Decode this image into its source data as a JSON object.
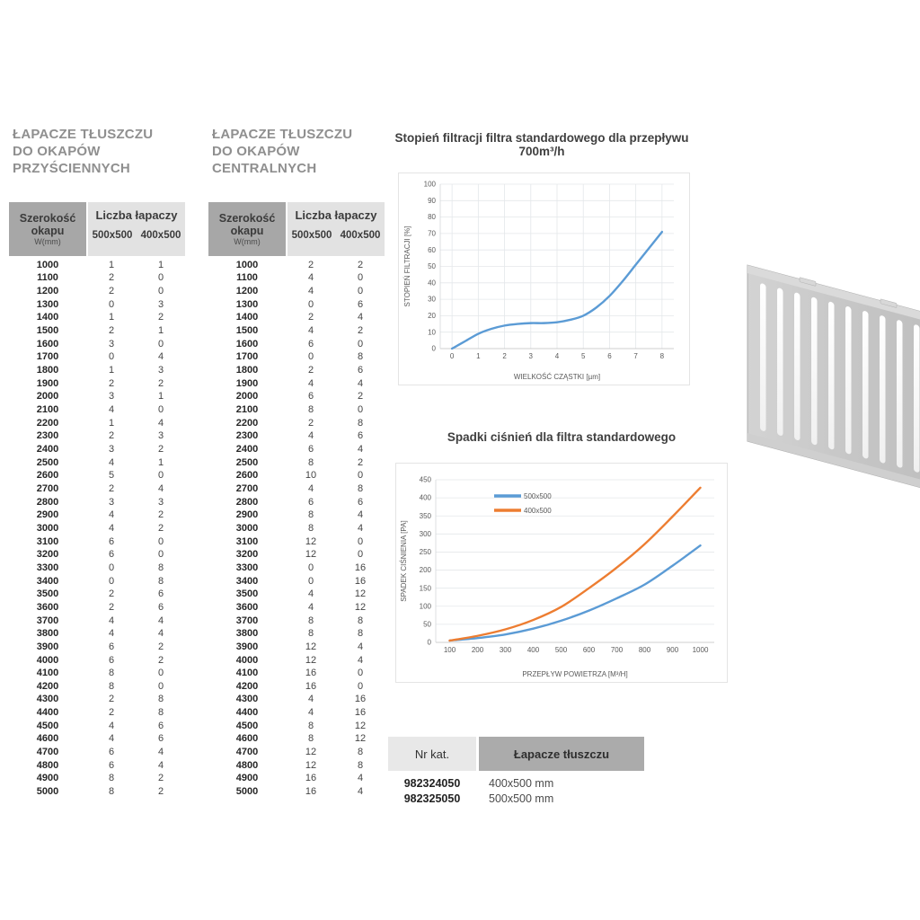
{
  "colors": {
    "accent_blue": "#5b9bd5",
    "accent_orange": "#ed7d31",
    "table_header_dark_bg": "#a7a7a7",
    "table_header_light_bg": "#e2e2e2",
    "section_title_grey": "#8f8f8f"
  },
  "wall_table": {
    "title": [
      "ŁAPACZE TŁUSZCZU",
      "DO OKAPÓW",
      "PRZYŚCIENNYCH"
    ],
    "header": {
      "col1_line1": "Szerokość",
      "col1_line2": "okapu",
      "col1_line3": "W(mm)",
      "group": "Liczba łapaczy",
      "col2": "500x500",
      "col3": "400x500"
    },
    "rows": [
      [
        1000,
        1,
        1
      ],
      [
        1100,
        2,
        0
      ],
      [
        1200,
        2,
        0
      ],
      [
        1300,
        0,
        3
      ],
      [
        1400,
        1,
        2
      ],
      [
        1500,
        2,
        1
      ],
      [
        1600,
        3,
        0
      ],
      [
        1700,
        0,
        4
      ],
      [
        1800,
        1,
        3
      ],
      [
        1900,
        2,
        2
      ],
      [
        2000,
        3,
        1
      ],
      [
        2100,
        4,
        0
      ],
      [
        2200,
        1,
        4
      ],
      [
        2300,
        2,
        3
      ],
      [
        2400,
        3,
        2
      ],
      [
        2500,
        4,
        1
      ],
      [
        2600,
        5,
        0
      ],
      [
        2700,
        2,
        4
      ],
      [
        2800,
        3,
        3
      ],
      [
        2900,
        4,
        2
      ],
      [
        3000,
        4,
        2
      ],
      [
        3100,
        6,
        0
      ],
      [
        3200,
        6,
        0
      ],
      [
        3300,
        0,
        8
      ],
      [
        3400,
        0,
        8
      ],
      [
        3500,
        2,
        6
      ],
      [
        3600,
        2,
        6
      ],
      [
        3700,
        4,
        4
      ],
      [
        3800,
        4,
        4
      ],
      [
        3900,
        6,
        2
      ],
      [
        4000,
        6,
        2
      ],
      [
        4100,
        8,
        0
      ],
      [
        4200,
        8,
        0
      ],
      [
        4300,
        2,
        8
      ],
      [
        4400,
        2,
        8
      ],
      [
        4500,
        4,
        6
      ],
      [
        4600,
        4,
        6
      ],
      [
        4700,
        6,
        4
      ],
      [
        4800,
        6,
        4
      ],
      [
        4900,
        8,
        2
      ],
      [
        5000,
        8,
        2
      ]
    ]
  },
  "central_table": {
    "title": [
      "ŁAPACZE TŁUSZCZU",
      "DO OKAPÓW",
      "CENTRALNYCH"
    ],
    "header": {
      "col1_line1": "Szerokość",
      "col1_line2": "okapu",
      "col1_line3": "W(mm)",
      "group": "Liczba łapaczy",
      "col2": "500x500",
      "col3": "400x500"
    },
    "rows": [
      [
        1000,
        2,
        2
      ],
      [
        1100,
        4,
        0
      ],
      [
        1200,
        4,
        0
      ],
      [
        1300,
        0,
        6
      ],
      [
        1400,
        2,
        4
      ],
      [
        1500,
        4,
        2
      ],
      [
        1600,
        6,
        0
      ],
      [
        1700,
        0,
        8
      ],
      [
        1800,
        2,
        6
      ],
      [
        1900,
        4,
        4
      ],
      [
        2000,
        6,
        2
      ],
      [
        2100,
        8,
        0
      ],
      [
        2200,
        2,
        8
      ],
      [
        2300,
        4,
        6
      ],
      [
        2400,
        6,
        4
      ],
      [
        2500,
        8,
        2
      ],
      [
        2600,
        10,
        0
      ],
      [
        2700,
        4,
        8
      ],
      [
        2800,
        6,
        6
      ],
      [
        2900,
        8,
        4
      ],
      [
        3000,
        8,
        4
      ],
      [
        3100,
        12,
        0
      ],
      [
        3200,
        12,
        0
      ],
      [
        3300,
        0,
        16
      ],
      [
        3400,
        0,
        16
      ],
      [
        3500,
        4,
        12
      ],
      [
        3600,
        4,
        12
      ],
      [
        3700,
        8,
        8
      ],
      [
        3800,
        8,
        8
      ],
      [
        3900,
        12,
        4
      ],
      [
        4000,
        12,
        4
      ],
      [
        4100,
        16,
        0
      ],
      [
        4200,
        16,
        0
      ],
      [
        4300,
        4,
        16
      ],
      [
        4400,
        4,
        16
      ],
      [
        4500,
        8,
        12
      ],
      [
        4600,
        8,
        12
      ],
      [
        4700,
        12,
        8
      ],
      [
        4800,
        12,
        8
      ],
      [
        4900,
        16,
        4
      ],
      [
        5000,
        16,
        4
      ]
    ]
  },
  "catalog_table": {
    "header": {
      "col1": "Nr kat.",
      "col2": "Łapacze tłuszczu"
    },
    "rows": [
      [
        "982324050",
        "400x500 mm"
      ],
      [
        "982325050",
        "500x500 mm"
      ]
    ]
  },
  "chart_data": [
    {
      "type": "line",
      "title": "Stopień filtracji filtra standardowego dla przepływu 700m³/h",
      "xlabel": "WIELKOŚĆ CZĄSTKI [µm]",
      "ylabel": "STOPIEŃ FILTRACJI [%]",
      "xlim": [
        -0.45,
        8.45
      ],
      "ylim": [
        0,
        100
      ],
      "xticks": [
        0,
        1,
        2,
        3,
        4,
        5,
        6,
        7,
        8
      ],
      "yticks": [
        0,
        10,
        20,
        30,
        40,
        50,
        60,
        70,
        80,
        90,
        100
      ],
      "grid": "both",
      "legend": null,
      "series": [
        {
          "color": "#5b9bd5",
          "x": [
            0,
            0.5,
            1,
            1.5,
            2,
            2.5,
            3,
            3.5,
            4,
            4.5,
            5,
            5.5,
            6,
            6.5,
            7,
            7.5,
            8
          ],
          "y": [
            0,
            4.5,
            9,
            12,
            14,
            15,
            15.5,
            15.5,
            16,
            17.5,
            20,
            25,
            32,
            41,
            51,
            61,
            71
          ]
        }
      ]
    },
    {
      "type": "line",
      "title": "Spadki ciśnień dla filtra standardowego",
      "xlabel": "PRZEPŁYW POWIETRZA [M³/H]",
      "ylabel": "SPADEK CIŚNIENIA [PA]",
      "xlim": [
        50,
        1050
      ],
      "ylim": [
        0,
        450
      ],
      "xticks": [
        100,
        200,
        300,
        400,
        500,
        600,
        700,
        800,
        900,
        1000
      ],
      "yticks": [
        0,
        50,
        100,
        150,
        200,
        250,
        300,
        350,
        400,
        450
      ],
      "grid": "horizontal",
      "legend": {
        "position": "inside-top-left",
        "items": [
          "500x500",
          "400x500"
        ]
      },
      "series": [
        {
          "name": "500x500",
          "color": "#5b9bd5",
          "x": [
            100,
            200,
            300,
            400,
            500,
            600,
            700,
            800,
            900,
            1000
          ],
          "y": [
            5,
            12,
            22,
            38,
            60,
            88,
            122,
            160,
            212,
            268
          ]
        },
        {
          "name": "400x500",
          "color": "#ed7d31",
          "x": [
            100,
            200,
            300,
            400,
            500,
            600,
            700,
            800,
            900,
            1000
          ],
          "y": [
            5,
            18,
            36,
            62,
            98,
            150,
            207,
            272,
            348,
            428
          ]
        }
      ]
    }
  ]
}
